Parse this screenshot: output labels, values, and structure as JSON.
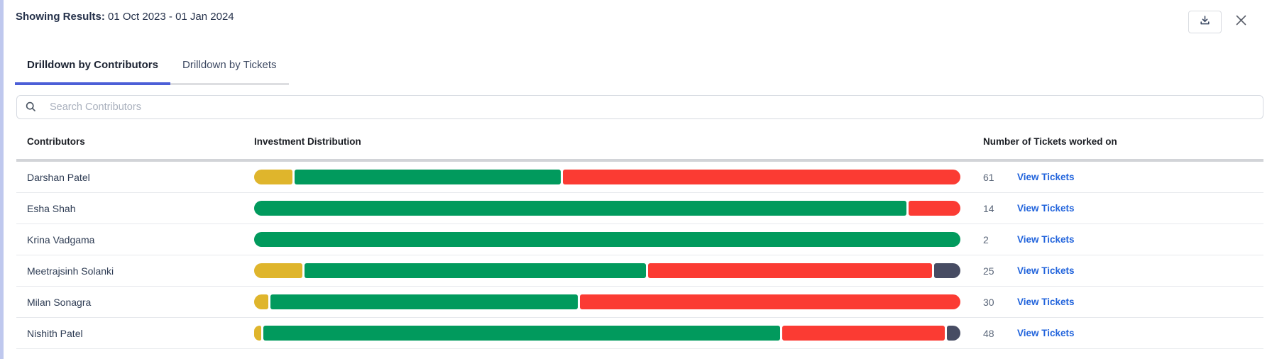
{
  "header": {
    "label": "Showing Results:",
    "date_range": "01 Oct 2023 - 01 Jan 2024"
  },
  "tabs": [
    {
      "label": "Drilldown by Contributors",
      "active": true
    },
    {
      "label": "Drilldown by Tickets",
      "active": false
    }
  ],
  "search": {
    "placeholder": "Search Contributors"
  },
  "table": {
    "columns": [
      "Contributors",
      "Investment Distribution",
      "Number of Tickets worked on"
    ],
    "view_tickets_label": "View Tickets",
    "rows": [
      {
        "name": "Darshan Patel",
        "tickets": "61",
        "segments": [
          {
            "color": "yellow",
            "pct": 5.4
          },
          {
            "color": "green",
            "pct": 37.7
          },
          {
            "color": "red",
            "pct": 56.2
          }
        ]
      },
      {
        "name": "Esha Shah",
        "tickets": "14",
        "segments": [
          {
            "color": "green",
            "pct": 92.6
          },
          {
            "color": "red",
            "pct": 7.4
          }
        ]
      },
      {
        "name": "Krina Vadgama",
        "tickets": "2",
        "segments": [
          {
            "color": "green",
            "pct": 100
          }
        ]
      },
      {
        "name": "Meetrajsinh Solanki",
        "tickets": "25",
        "segments": [
          {
            "color": "yellow",
            "pct": 6.8
          },
          {
            "color": "green",
            "pct": 48.3
          },
          {
            "color": "red",
            "pct": 40.2
          },
          {
            "color": "dark",
            "pct": 3.7
          }
        ]
      },
      {
        "name": "Milan Sonagra",
        "tickets": "30",
        "segments": [
          {
            "color": "yellow",
            "pct": 2.0
          },
          {
            "color": "green",
            "pct": 43.7
          },
          {
            "color": "red",
            "pct": 54.0
          }
        ]
      },
      {
        "name": "Nishith Patel",
        "tickets": "48",
        "segments": [
          {
            "color": "yellow",
            "pct": 1.0
          },
          {
            "color": "green",
            "pct": 73.1
          },
          {
            "color": "red",
            "pct": 23.0
          },
          {
            "color": "dark",
            "pct": 1.9
          }
        ]
      }
    ]
  },
  "colors": {
    "yellow": "#dfb52c",
    "green": "#019a5d",
    "red": "#fb3b33",
    "dark": "#474c63",
    "accent_tab": "#4c5fd7",
    "link": "#2264dc",
    "left_border": "#bfc8ee"
  }
}
